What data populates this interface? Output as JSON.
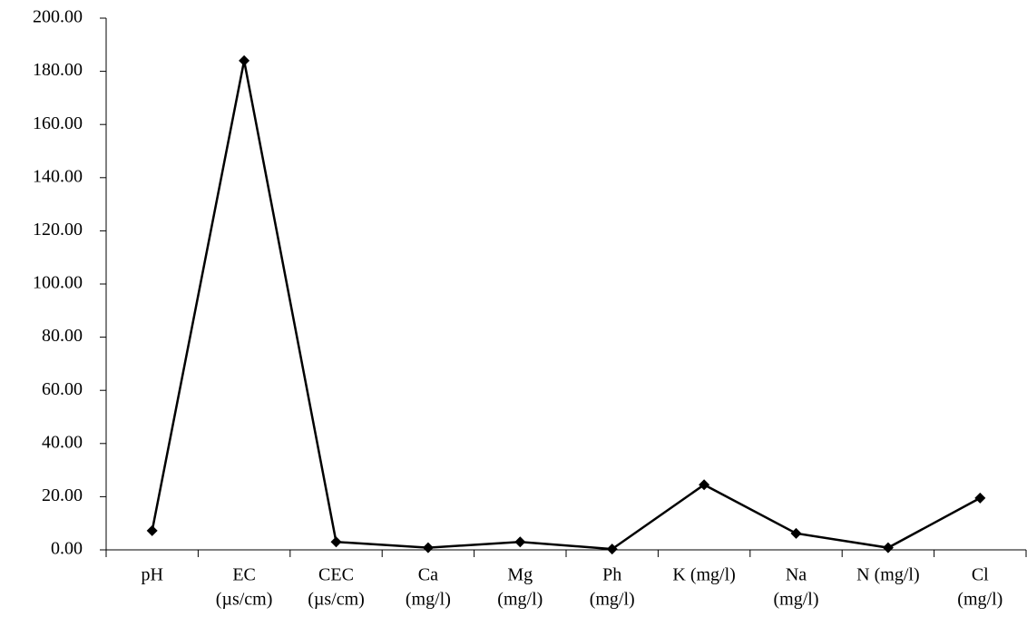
{
  "chart_data": {
    "type": "line",
    "categories": [
      [
        "pH"
      ],
      [
        "EC",
        "(µs/cm)"
      ],
      [
        "CEC",
        "(µs/cm)"
      ],
      [
        "Ca",
        "(mg/l)"
      ],
      [
        "Mg",
        "(mg/l)"
      ],
      [
        "Ph",
        "(mg/l)"
      ],
      [
        "K (mg/l)"
      ],
      [
        "Na",
        "(mg/l)"
      ],
      [
        "N (mg/l)"
      ],
      [
        "Cl",
        "(mg/l)"
      ]
    ],
    "values": [
      7.2,
      184,
      3.0,
      0.8,
      3.0,
      0.3,
      24.5,
      6.2,
      0.8,
      19.5
    ],
    "color": "#000000",
    "ylim": [
      0,
      200
    ],
    "yticks": [
      {
        "value": 0,
        "label": "0.00"
      },
      {
        "value": 20,
        "label": "20.00"
      },
      {
        "value": 40,
        "label": "40.00"
      },
      {
        "value": 60,
        "label": "60.00"
      },
      {
        "value": 80,
        "label": "80.00"
      },
      {
        "value": 100,
        "label": "100.00"
      },
      {
        "value": 120,
        "label": "120.00"
      },
      {
        "value": 140,
        "label": "140.00"
      },
      {
        "value": 160,
        "label": "160.00"
      },
      {
        "value": 180,
        "label": "180.00"
      },
      {
        "value": 200,
        "label": "200.00"
      }
    ],
    "grid": false
  }
}
